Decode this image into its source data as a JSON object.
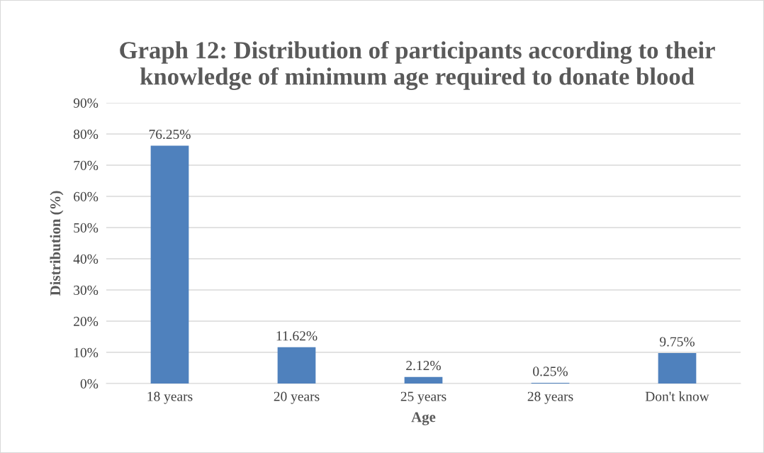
{
  "chart_data": {
    "type": "bar",
    "title": "Graph 12: Distribution of participants according to their knowledge of minimum age required to donate blood",
    "xlabel": "Age",
    "ylabel": "Distribution (%)",
    "categories": [
      "18 years",
      "20 years",
      "25 years",
      "28 years",
      "Don't know"
    ],
    "values": [
      76.25,
      11.62,
      2.12,
      0.25,
      9.75
    ],
    "value_labels": [
      "76.25%",
      "11.62%",
      "2.12%",
      "0.25%",
      "9.75%"
    ],
    "color": "#4f81bd",
    "ylim": [
      0,
      90
    ],
    "yticks": [
      {
        "value": 0,
        "label": "0%"
      },
      {
        "value": 10,
        "label": "10%"
      },
      {
        "value": 20,
        "label": "20%"
      },
      {
        "value": 30,
        "label": "30%"
      },
      {
        "value": 40,
        "label": "40%"
      },
      {
        "value": 50,
        "label": "50%"
      },
      {
        "value": 60,
        "label": "60%"
      },
      {
        "value": 70,
        "label": "70%"
      },
      {
        "value": 80,
        "label": "80%"
      },
      {
        "value": 90,
        "label": "90%"
      }
    ],
    "grid": "y",
    "legend": false
  }
}
